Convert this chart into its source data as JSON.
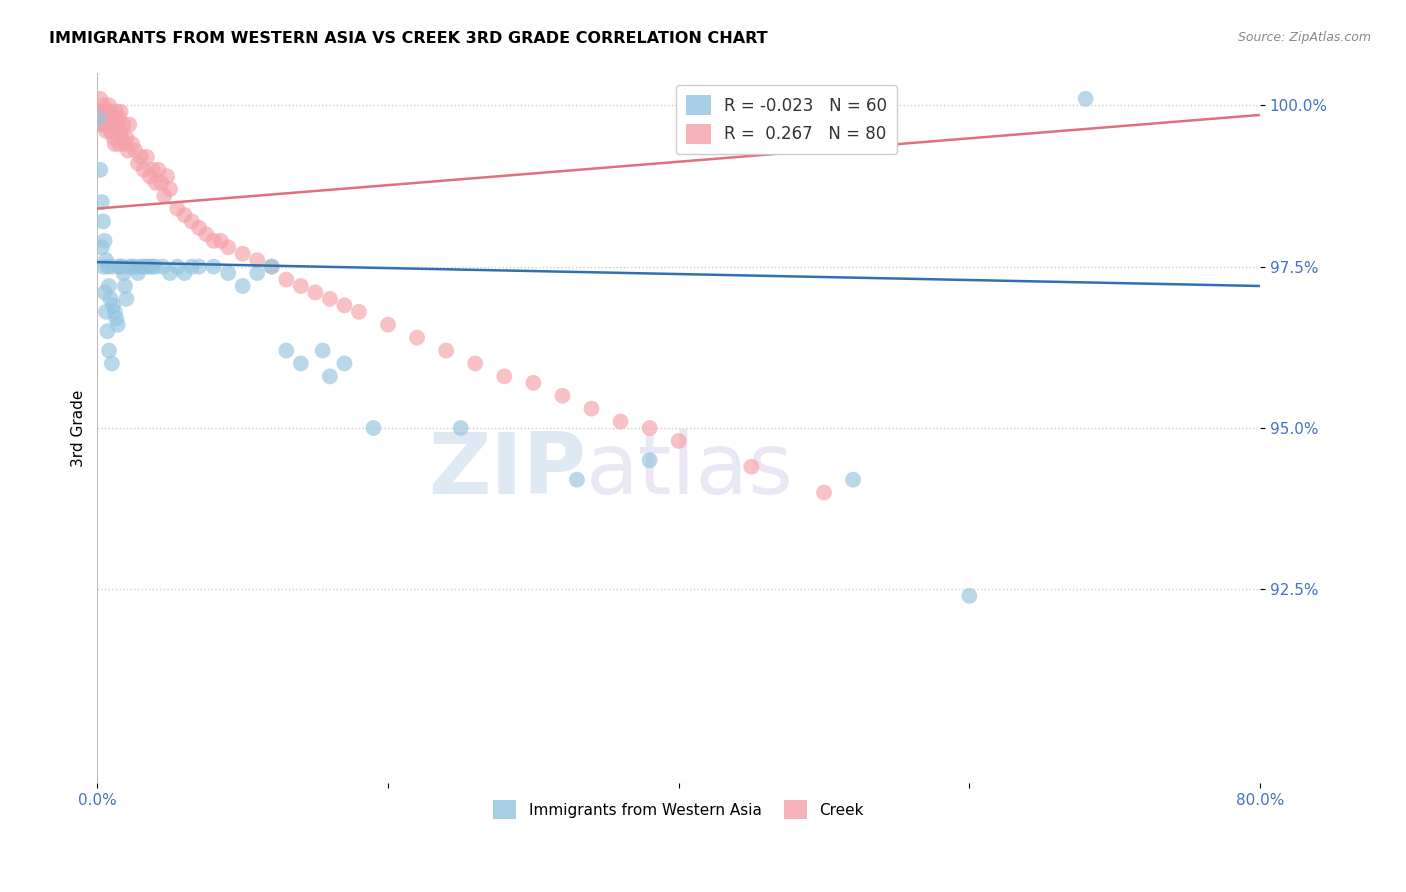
{
  "title": "IMMIGRANTS FROM WESTERN ASIA VS CREEK 3RD GRADE CORRELATION CHART",
  "source": "Source: ZipAtlas.com",
  "ylabel": "3rd Grade",
  "watermark_zip": "ZIP",
  "watermark_atlas": "atlas",
  "x_min": 0.0,
  "x_max": 0.8,
  "y_min": 0.895,
  "y_max": 1.005,
  "y_ticks": [
    0.925,
    0.95,
    0.975,
    1.0
  ],
  "y_ticklabels": [
    "92.5%",
    "95.0%",
    "97.5%",
    "100.0%"
  ],
  "blue_R": -0.023,
  "blue_N": 60,
  "pink_R": 0.267,
  "pink_N": 80,
  "blue_color": "#93c4e0",
  "pink_color": "#f4a0a8",
  "blue_line_color": "#3070b0",
  "pink_line_color": "#e07080",
  "legend_blue_label": "Immigrants from Western Asia",
  "legend_pink_label": "Creek",
  "blue_line_x0": 0.0,
  "blue_line_y0": 0.9757,
  "blue_line_x1": 0.8,
  "blue_line_y1": 0.972,
  "pink_line_x0": 0.0,
  "pink_line_y0": 0.984,
  "pink_line_x1": 0.8,
  "pink_line_y1": 0.9985,
  "blue_x": [
    0.001,
    0.002,
    0.003,
    0.003,
    0.004,
    0.004,
    0.005,
    0.005,
    0.006,
    0.006,
    0.007,
    0.007,
    0.008,
    0.008,
    0.009,
    0.01,
    0.01,
    0.011,
    0.012,
    0.013,
    0.014,
    0.015,
    0.016,
    0.017,
    0.018,
    0.019,
    0.02,
    0.022,
    0.024,
    0.026,
    0.028,
    0.03,
    0.032,
    0.034,
    0.036,
    0.038,
    0.04,
    0.045,
    0.05,
    0.055,
    0.06,
    0.065,
    0.07,
    0.08,
    0.09,
    0.1,
    0.11,
    0.12,
    0.13,
    0.14,
    0.155,
    0.16,
    0.17,
    0.19,
    0.25,
    0.33,
    0.38,
    0.52,
    0.6,
    0.68
  ],
  "blue_y": [
    0.998,
    0.99,
    0.985,
    0.978,
    0.982,
    0.975,
    0.979,
    0.971,
    0.976,
    0.968,
    0.975,
    0.965,
    0.972,
    0.962,
    0.97,
    0.975,
    0.96,
    0.969,
    0.968,
    0.967,
    0.966,
    0.975,
    0.975,
    0.975,
    0.974,
    0.972,
    0.97,
    0.975,
    0.975,
    0.975,
    0.974,
    0.975,
    0.975,
    0.975,
    0.975,
    0.975,
    0.975,
    0.975,
    0.974,
    0.975,
    0.974,
    0.975,
    0.975,
    0.975,
    0.974,
    0.972,
    0.974,
    0.975,
    0.962,
    0.96,
    0.962,
    0.958,
    0.96,
    0.95,
    0.95,
    0.942,
    0.945,
    0.942,
    0.924,
    1.001
  ],
  "pink_x": [
    0.001,
    0.002,
    0.002,
    0.003,
    0.003,
    0.004,
    0.004,
    0.005,
    0.005,
    0.006,
    0.006,
    0.007,
    0.007,
    0.008,
    0.008,
    0.009,
    0.009,
    0.01,
    0.01,
    0.011,
    0.011,
    0.012,
    0.012,
    0.013,
    0.013,
    0.014,
    0.015,
    0.015,
    0.016,
    0.016,
    0.017,
    0.018,
    0.019,
    0.02,
    0.021,
    0.022,
    0.024,
    0.026,
    0.028,
    0.03,
    0.032,
    0.034,
    0.036,
    0.038,
    0.04,
    0.042,
    0.044,
    0.046,
    0.048,
    0.05,
    0.055,
    0.06,
    0.065,
    0.07,
    0.075,
    0.08,
    0.085,
    0.09,
    0.1,
    0.11,
    0.12,
    0.13,
    0.14,
    0.15,
    0.16,
    0.17,
    0.18,
    0.2,
    0.22,
    0.24,
    0.26,
    0.28,
    0.3,
    0.32,
    0.34,
    0.36,
    0.38,
    0.4,
    0.45,
    0.5
  ],
  "pink_y": [
    0.999,
    0.998,
    1.001,
    0.997,
    0.999,
    0.998,
    1.0,
    0.997,
    0.999,
    0.998,
    0.996,
    0.999,
    0.997,
    0.998,
    1.0,
    0.996,
    0.999,
    0.998,
    0.996,
    0.997,
    0.995,
    0.998,
    0.994,
    0.997,
    0.999,
    0.996,
    0.998,
    0.994,
    0.996,
    0.999,
    0.995,
    0.997,
    0.994,
    0.995,
    0.993,
    0.997,
    0.994,
    0.993,
    0.991,
    0.992,
    0.99,
    0.992,
    0.989,
    0.99,
    0.988,
    0.99,
    0.988,
    0.986,
    0.989,
    0.987,
    0.984,
    0.983,
    0.982,
    0.981,
    0.98,
    0.979,
    0.979,
    0.978,
    0.977,
    0.976,
    0.975,
    0.973,
    0.972,
    0.971,
    0.97,
    0.969,
    0.968,
    0.966,
    0.964,
    0.962,
    0.96,
    0.958,
    0.957,
    0.955,
    0.953,
    0.951,
    0.95,
    0.948,
    0.944,
    0.94
  ]
}
